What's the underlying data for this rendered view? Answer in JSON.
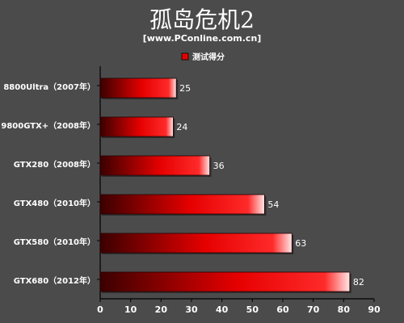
{
  "chart_data": {
    "type": "bar",
    "orientation": "horizontal",
    "title": "孤岛危机2",
    "subtitle": "[www.PConline.com.cn]",
    "categories": [
      "8800Ultra（2007年）",
      "9800GTX+（2008年）",
      "GTX280（2008年）",
      "GTX480（2010年）",
      "GTX580（2010年）",
      "GTX680（2012年）"
    ],
    "series": [
      {
        "name": "测试得分",
        "values": [
          25,
          24,
          36,
          54,
          63,
          82
        ]
      }
    ],
    "xlim": [
      0,
      90
    ],
    "xticks": [
      0,
      10,
      20,
      30,
      40,
      50,
      60,
      70,
      80,
      90
    ],
    "legend_position": "top-center",
    "grid": false,
    "colors": {
      "background": "#4b4b4b",
      "bar_dark": "#3a0000",
      "bar_mid": "#e60000",
      "bar_light": "#ff2a2a",
      "bar_highlight": "#ffe6e6",
      "text": "#ffffff",
      "axis": "#000000"
    }
  }
}
